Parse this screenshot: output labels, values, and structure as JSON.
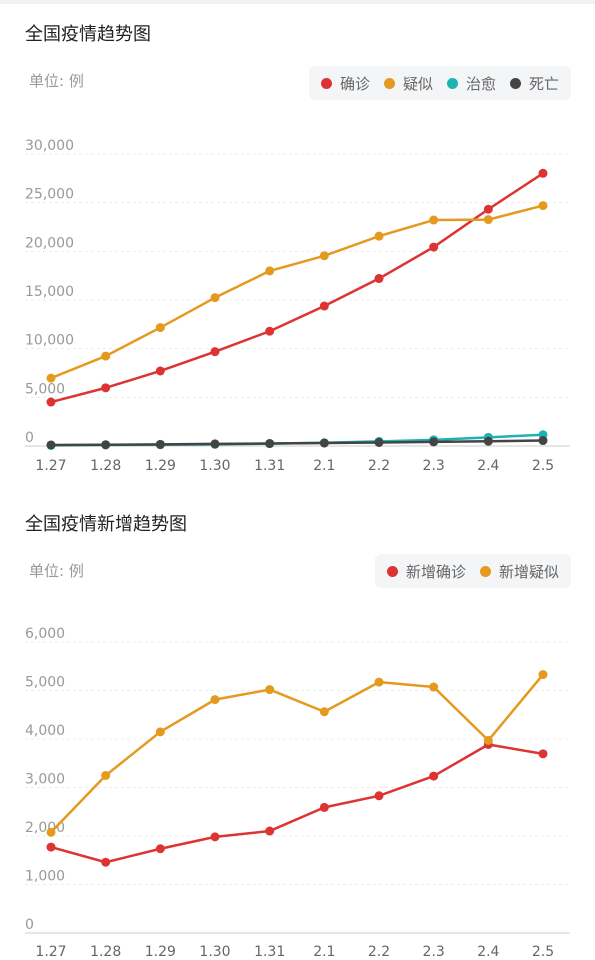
{
  "chart_data": [
    {
      "type": "line",
      "title": "全国疫情趋势图",
      "unit_label": "单位: 例",
      "categories": [
        "1.27",
        "1.28",
        "1.29",
        "1.30",
        "1.31",
        "2.1",
        "2.2",
        "2.3",
        "2.4",
        "2.5"
      ],
      "ylim": [
        0,
        30000
      ],
      "yticks": [
        "0",
        "5,000",
        "10,000",
        "15,000",
        "20,000",
        "25,000",
        "30,000"
      ],
      "ytick_values": [
        0,
        5000,
        10000,
        15000,
        20000,
        25000,
        30000
      ],
      "grid": true,
      "legend_position": "top-right",
      "series": [
        {
          "name": "确诊",
          "color": "#dd3333",
          "values": [
            4515,
            5974,
            7711,
            9692,
            11791,
            14380,
            17205,
            20438,
            24324,
            28018
          ]
        },
        {
          "name": "疑似",
          "color": "#e39a1e",
          "values": [
            6973,
            9239,
            12167,
            15238,
            17988,
            19544,
            21558,
            23214,
            23260,
            24702
          ]
        },
        {
          "name": "治愈",
          "color": "#1bb3b3",
          "values": [
            60,
            103,
            124,
            171,
            243,
            328,
            475,
            632,
            892,
            1153
          ]
        },
        {
          "name": "死亡",
          "color": "#444444",
          "values": [
            106,
            132,
            170,
            213,
            259,
            304,
            361,
            425,
            490,
            563
          ]
        }
      ]
    },
    {
      "type": "line",
      "title": "全国疫情新增趋势图",
      "unit_label": "单位: 例",
      "categories": [
        "1.27",
        "1.28",
        "1.29",
        "1.30",
        "1.31",
        "2.1",
        "2.2",
        "2.3",
        "2.4",
        "2.5"
      ],
      "ylim": [
        0,
        6000
      ],
      "yticks": [
        "0",
        "1,000",
        "2,000",
        "3,000",
        "4,000",
        "5,000",
        "6,000"
      ],
      "ytick_values": [
        0,
        1000,
        2000,
        3000,
        4000,
        5000,
        6000
      ],
      "grid": true,
      "legend_position": "top-right",
      "series": [
        {
          "name": "新增确诊",
          "color": "#dd3333",
          "values": [
            1771,
            1459,
            1737,
            1982,
            2102,
            2590,
            2829,
            3235,
            3887,
            3694
          ]
        },
        {
          "name": "新增疑似",
          "color": "#e39a1e",
          "values": [
            2077,
            3248,
            4148,
            4812,
            5019,
            4562,
            5173,
            5072,
            3971,
            5328
          ]
        }
      ]
    }
  ]
}
